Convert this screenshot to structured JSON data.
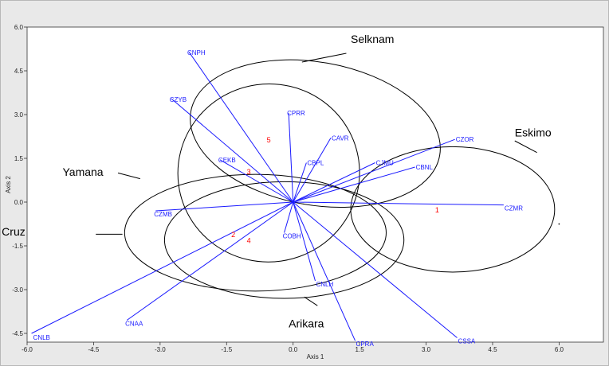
{
  "chart_data": {
    "type": "scatter",
    "subtype": "biplot",
    "xlabel": "Axis 1",
    "ylabel": "Axis 2",
    "xlim": [
      -6.0,
      7.0
    ],
    "ylim": [
      -4.8,
      6.0
    ],
    "x_ticks": [
      "-6.0",
      "-4.5",
      "-3.0",
      "-1.5",
      "0.0",
      "1.5",
      "3.0",
      "4.5",
      "6.0"
    ],
    "x_tick_values": [
      -6.0,
      -4.5,
      -3.0,
      -1.5,
      0.0,
      1.5,
      3.0,
      4.5,
      6.0
    ],
    "y_ticks": [
      "6.0",
      "4.5",
      "3.0",
      "1.5",
      "0.0",
      "-1.5",
      "-3.0",
      "-4.5"
    ],
    "y_tick_values": [
      6.0,
      4.5,
      3.0,
      1.5,
      0.0,
      -1.5,
      -3.0,
      -4.5
    ],
    "vector_color": "#1a1aff",
    "point_color": "#ff0000",
    "vectors": [
      {
        "name": "CNPH",
        "x": -2.35,
        "y": 5.15
      },
      {
        "name": "CZYB",
        "x": -2.75,
        "y": 3.55
      },
      {
        "name": "CPRR",
        "x": -0.1,
        "y": 3.05
      },
      {
        "name": "CAVR",
        "x": 0.85,
        "y": 2.2
      },
      {
        "name": "CEKB",
        "x": -1.65,
        "y": 1.45
      },
      {
        "name": "CBPL",
        "x": 0.3,
        "y": 1.35
      },
      {
        "name": "CJMU",
        "x": 1.85,
        "y": 1.35
      },
      {
        "name": "CZOR",
        "x": 3.65,
        "y": 2.15
      },
      {
        "name": "CBNL",
        "x": 2.75,
        "y": 1.2
      },
      {
        "name": "CZMR",
        "x": 4.75,
        "y": -0.1
      },
      {
        "name": "CZMB",
        "x": -3.1,
        "y": -0.3
      },
      {
        "name": "COBH",
        "x": -0.2,
        "y": -1.05
      },
      {
        "name": "CNLH",
        "x": 0.5,
        "y": -2.7
      },
      {
        "name": "CNAA",
        "x": -3.75,
        "y": -4.05
      },
      {
        "name": "CNLB",
        "x": -5.9,
        "y": -4.5
      },
      {
        "name": "CPRA",
        "x": 1.4,
        "y": -4.75
      },
      {
        "name": "CSSA",
        "x": 3.7,
        "y": -4.65
      }
    ],
    "points": [
      {
        "label": "1",
        "x": 3.25,
        "y": -0.35
      },
      {
        "label": "2",
        "x": -1.35,
        "y": -1.2
      },
      {
        "label": "3",
        "x": -1.0,
        "y": 0.95
      },
      {
        "label": "4",
        "x": -1.0,
        "y": -1.4
      },
      {
        "label": "5",
        "x": -0.55,
        "y": 2.05
      }
    ],
    "groups": [
      {
        "name": "Selknam",
        "cx": 0.5,
        "cy": 2.35,
        "rx": 2.85,
        "ry": 2.45,
        "rotate_deg": 10,
        "label_x": 1.3,
        "label_y": 5.45,
        "leader_from": [
          1.2,
          5.1
        ],
        "leader_to": [
          0.2,
          4.8
        ]
      },
      {
        "name": "Eskimo",
        "cx": 3.6,
        "cy": -0.25,
        "rx": 2.3,
        "ry": 2.15,
        "rotate_deg": 0,
        "label_x": 5.0,
        "label_y": 2.25,
        "leader_from": [
          5.0,
          2.1
        ],
        "leader_to": [
          5.5,
          1.7
        ]
      },
      {
        "name": "Yamana",
        "cx": -0.55,
        "cy": 1.0,
        "rx": 2.05,
        "ry": 3.05,
        "rotate_deg": -8,
        "label_x": -5.2,
        "label_y": 0.9,
        "leader_from": [
          -3.95,
          1.0
        ],
        "leader_to": [
          -3.45,
          0.8
        ]
      },
      {
        "name": "Santa Cruz",
        "cx": -0.85,
        "cy": -1.05,
        "rx": 2.95,
        "ry": 2.0,
        "rotate_deg": 0,
        "label_x": -7.3,
        "label_y": -1.15,
        "leader_from": [
          -4.45,
          -1.1
        ],
        "leader_to": [
          -3.85,
          -1.1
        ]
      },
      {
        "name": "Arikara",
        "cx": -0.2,
        "cy": -1.3,
        "rx": 2.7,
        "ry": 2.0,
        "rotate_deg": 0,
        "label_x": -0.1,
        "label_y": -4.3,
        "leader_from": [
          0.55,
          -3.55
        ],
        "leader_to": [
          0.25,
          -3.25
        ]
      }
    ],
    "stray_point": {
      "x": 6.0,
      "y": -0.75
    }
  }
}
